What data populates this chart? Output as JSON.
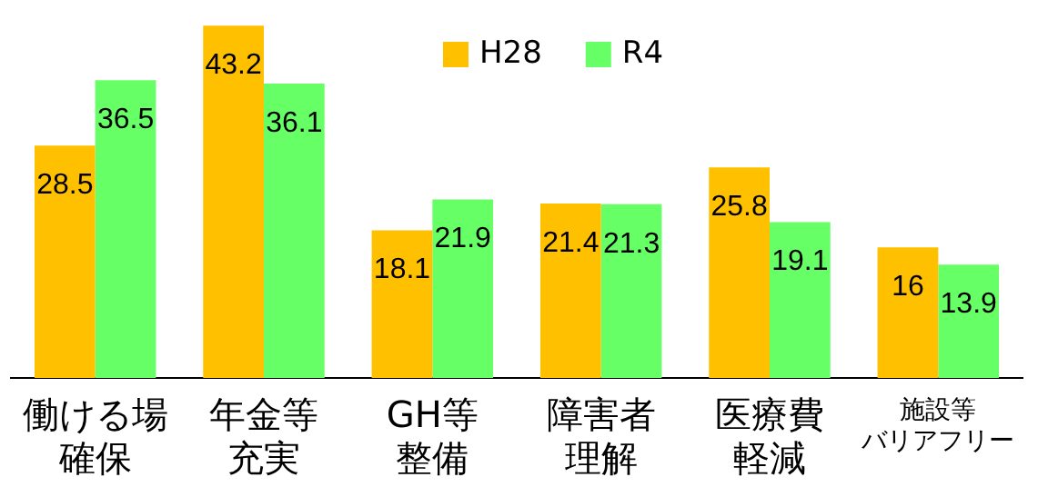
{
  "chart_data": {
    "type": "bar",
    "categories": [
      "働ける場確保",
      "年金等充実",
      "GH等整備",
      "障害者理解",
      "医療費軽減",
      "施設等バリアフリー"
    ],
    "series": [
      {
        "name": "H28",
        "color": "#ffc000",
        "values": [
          28.5,
          43.2,
          18.1,
          21.4,
          25.8,
          16
        ]
      },
      {
        "name": "R4",
        "color": "#66ff66",
        "values": [
          36.5,
          36.1,
          21.9,
          21.3,
          19.1,
          13.9
        ]
      }
    ],
    "data_labels": true,
    "legend": "top",
    "grid": false
  }
}
